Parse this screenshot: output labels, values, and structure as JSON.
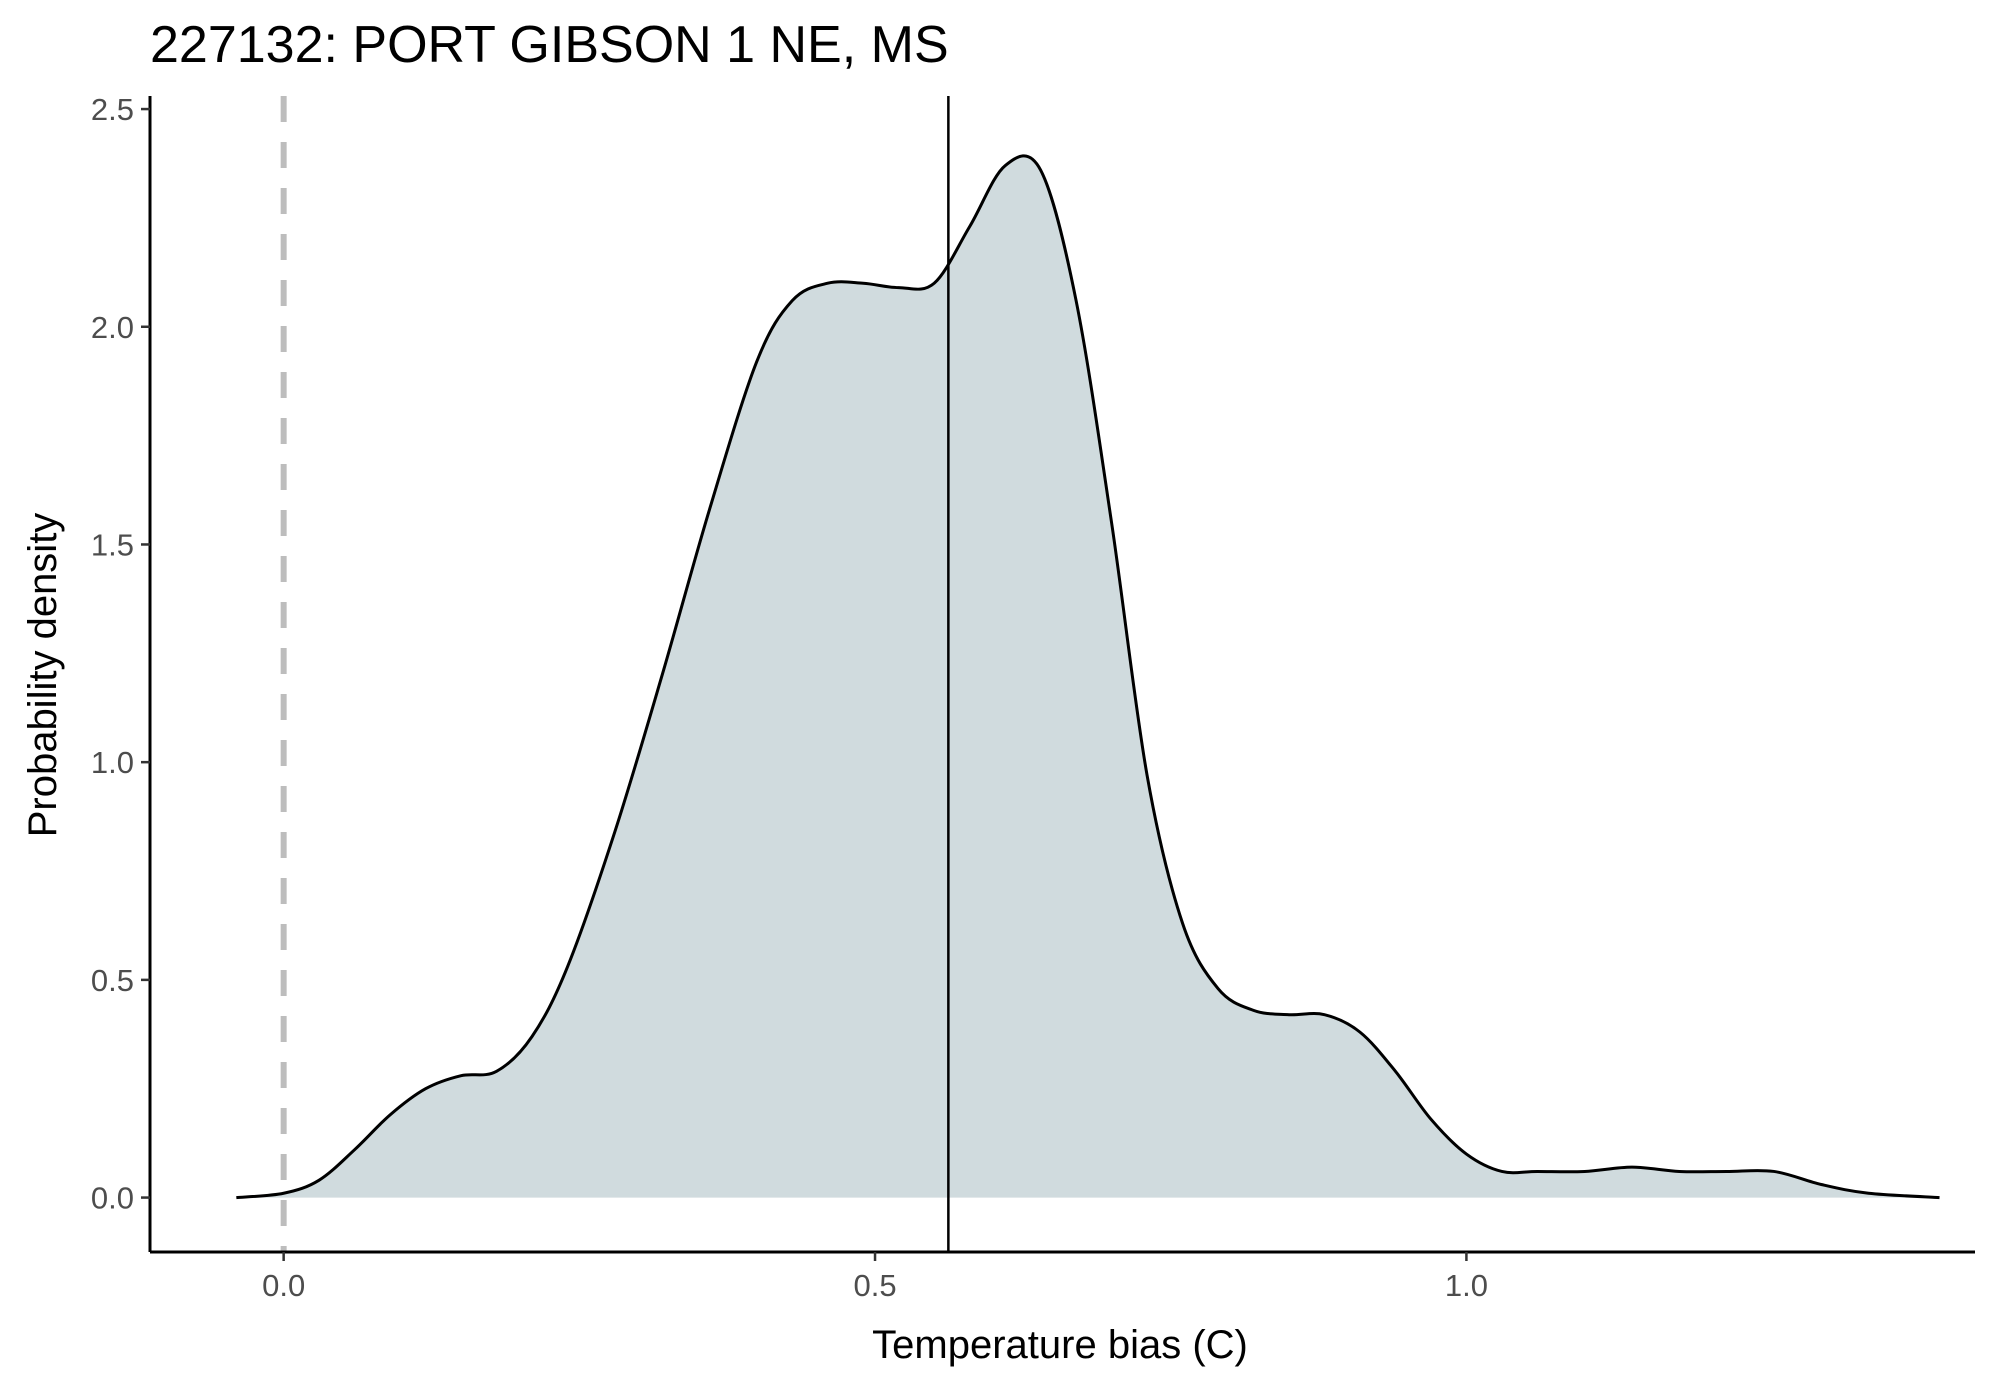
{
  "chart_data": {
    "type": "area",
    "title": "227132: PORT GIBSON 1 NE, MS",
    "xlabel": "Temperature bias (C)",
    "ylabel": "Probability density",
    "xlim": [
      -0.113,
      1.43
    ],
    "ylim": [
      -0.125,
      2.53
    ],
    "x_ticks": [
      0.0,
      0.5,
      1.0
    ],
    "x_tick_labels": [
      "0.0",
      "0.5",
      "1.0"
    ],
    "y_ticks": [
      0.0,
      0.5,
      1.0,
      1.5,
      2.0,
      2.5
    ],
    "y_tick_labels": [
      "0.0",
      "0.5",
      "1.0",
      "1.5",
      "2.0",
      "2.5"
    ],
    "grid": false,
    "fill_color": "#d0dbde",
    "line_color": "#000000",
    "reference_line": {
      "x": 0.0,
      "style": "dashed",
      "color": "#bdbdbd"
    },
    "mean_line": {
      "x": 0.562,
      "style": "solid",
      "color": "#000000"
    },
    "series": [
      {
        "x": [
          -0.04,
          0.0,
          0.03,
          0.06,
          0.09,
          0.12,
          0.15,
          0.18,
          0.21,
          0.24,
          0.28,
          0.32,
          0.36,
          0.4,
          0.43,
          0.46,
          0.49,
          0.52,
          0.55,
          0.58,
          0.61,
          0.64,
          0.67,
          0.7,
          0.73,
          0.76,
          0.79,
          0.82,
          0.85,
          0.88,
          0.91,
          0.94,
          0.97,
          1.0,
          1.03,
          1.06,
          1.1,
          1.14,
          1.18,
          1.22,
          1.26,
          1.3,
          1.34,
          1.4
        ],
        "y": [
          0.0,
          0.01,
          0.04,
          0.11,
          0.19,
          0.25,
          0.28,
          0.29,
          0.37,
          0.53,
          0.84,
          1.2,
          1.58,
          1.92,
          2.06,
          2.1,
          2.1,
          2.09,
          2.1,
          2.23,
          2.37,
          2.36,
          2.06,
          1.55,
          0.97,
          0.63,
          0.48,
          0.43,
          0.42,
          0.42,
          0.38,
          0.29,
          0.18,
          0.1,
          0.06,
          0.06,
          0.06,
          0.07,
          0.06,
          0.06,
          0.06,
          0.03,
          0.01,
          0.0
        ]
      }
    ]
  }
}
